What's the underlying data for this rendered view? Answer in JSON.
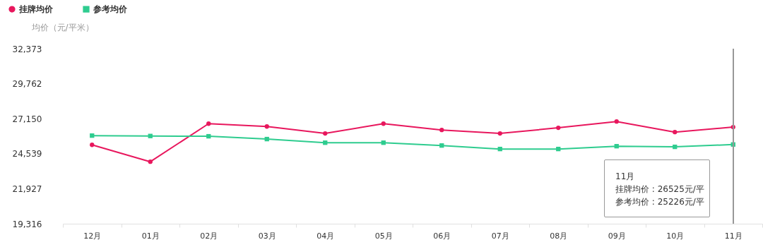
{
  "chart_data": {
    "type": "line",
    "ylabel": "均价（元/平米）",
    "categories": [
      "12月",
      "01月",
      "02月",
      "03月",
      "04月",
      "05月",
      "06月",
      "07月",
      "08月",
      "09月",
      "10月",
      "11月"
    ],
    "series": [
      {
        "name": "挂牌均价",
        "color": "#e8175d",
        "marker": "circle",
        "values": [
          25200,
          23940,
          26780,
          26570,
          26050,
          26780,
          26310,
          26050,
          26470,
          26940,
          26150,
          26525
        ]
      },
      {
        "name": "参考均价",
        "color": "#2ecc8f",
        "marker": "square",
        "values": [
          25890,
          25860,
          25840,
          25630,
          25360,
          25360,
          25150,
          24890,
          24890,
          25100,
          25050,
          25226
        ]
      }
    ],
    "ylim": [
      19316,
      32373
    ],
    "yticks": [
      {
        "value": 19316,
        "label": "19,316"
      },
      {
        "value": 21927,
        "label": "21,927"
      },
      {
        "value": 24539,
        "label": "24,539"
      },
      {
        "value": 27150,
        "label": "27,150"
      },
      {
        "value": 29762,
        "label": "29,762"
      },
      {
        "value": 32373,
        "label": "32,373"
      }
    ],
    "grid": false,
    "legend": "top left",
    "line_style": "solid",
    "ref_lines": [
      {
        "axis": "x",
        "value": "11月",
        "color": "#999999"
      }
    ],
    "annotations": [
      "11月",
      "挂牌均价 : 26525元/平",
      "参考均价 : 25226元/平"
    ]
  }
}
